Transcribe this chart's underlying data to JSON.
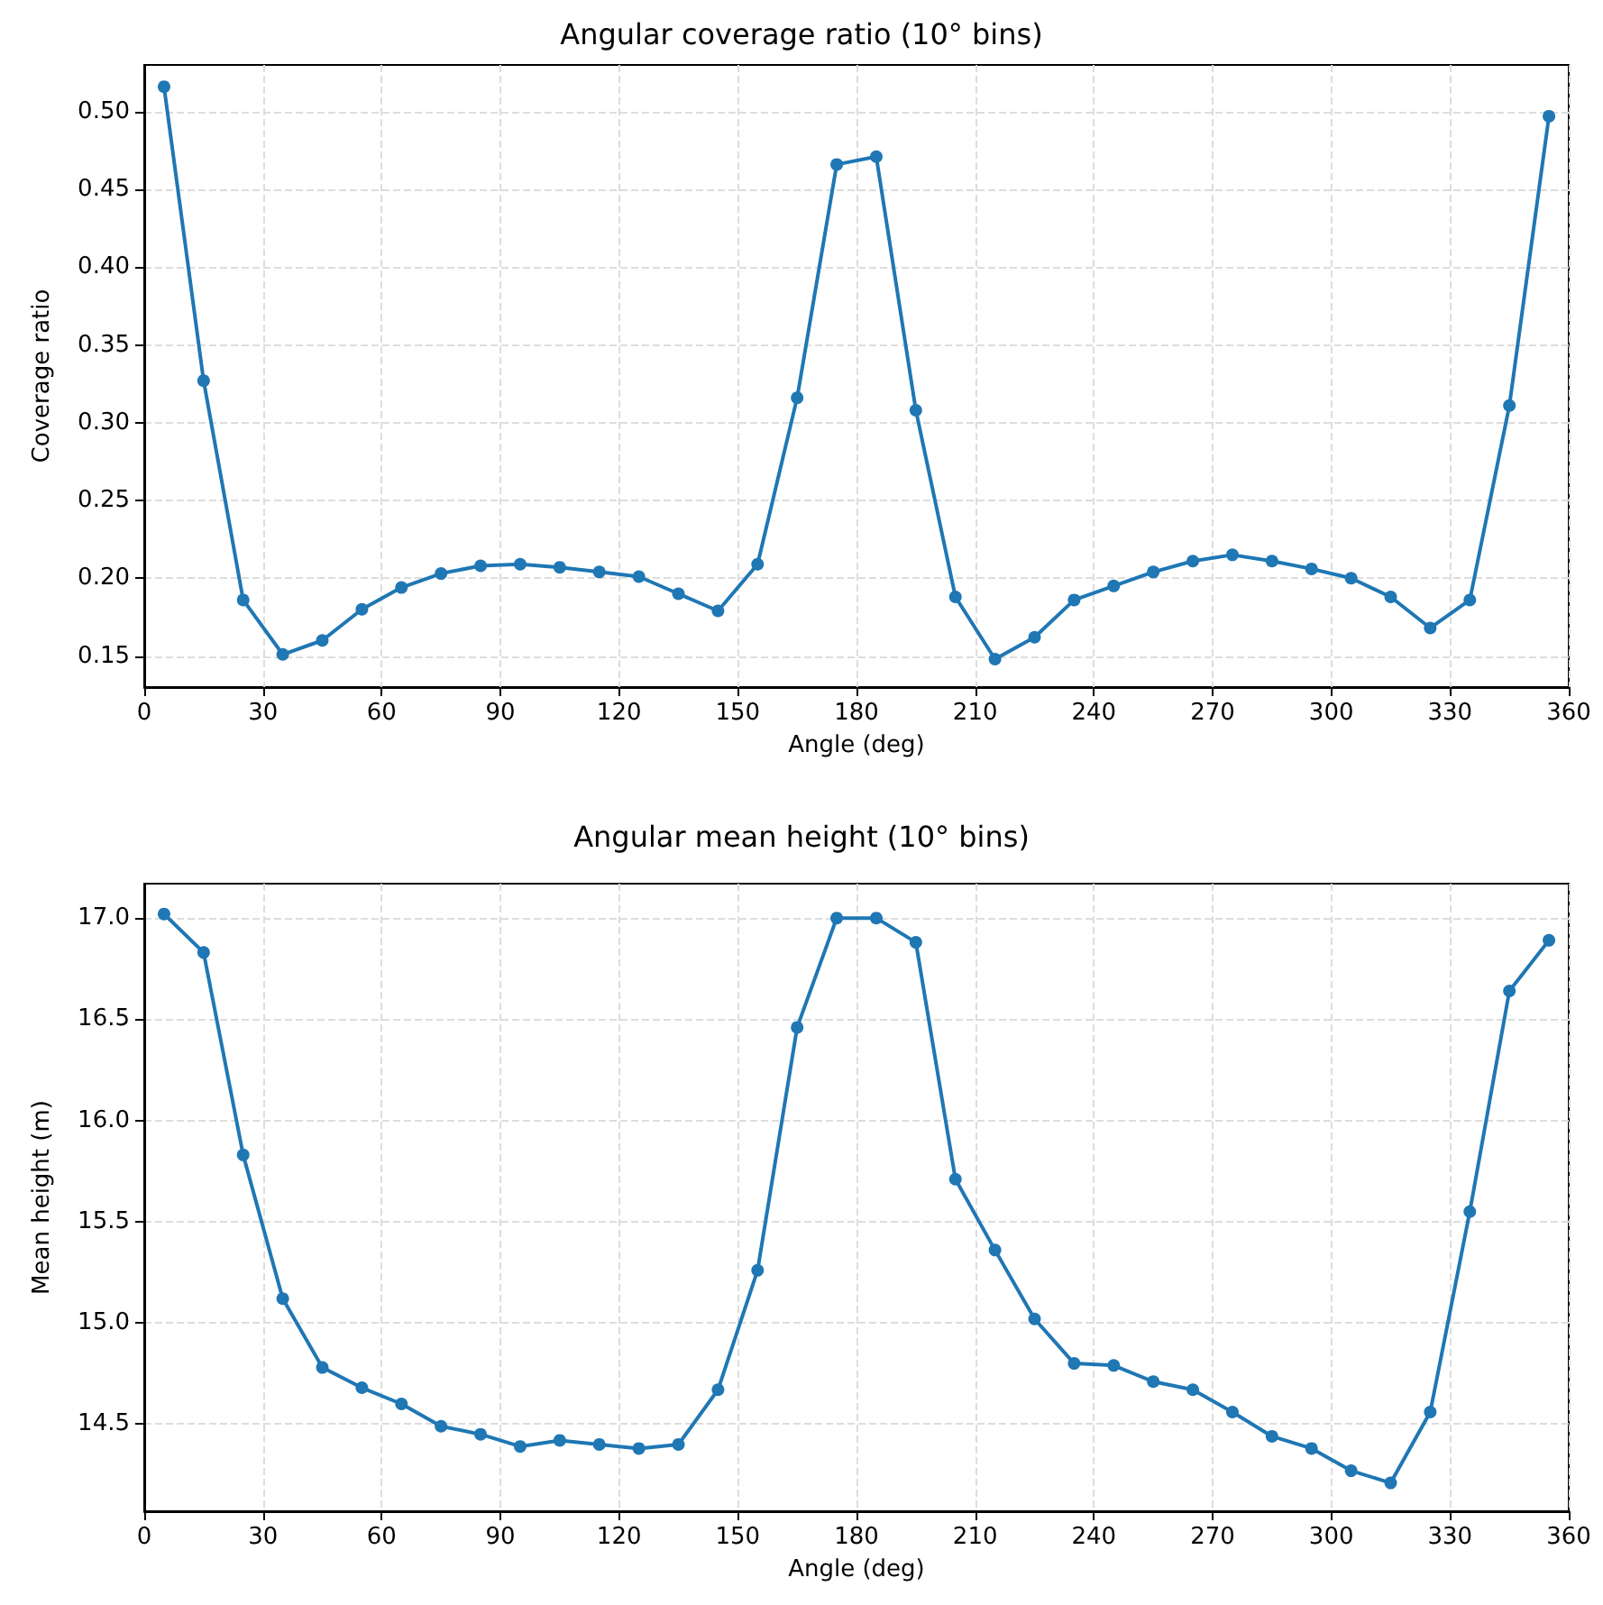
{
  "chart_data": [
    {
      "type": "line",
      "title": "Angular coverage ratio (10° bins)",
      "xlabel": "Angle (deg)",
      "ylabel": "Coverage ratio",
      "x": [
        5,
        15,
        25,
        35,
        45,
        55,
        65,
        75,
        85,
        95,
        105,
        115,
        125,
        135,
        145,
        155,
        165,
        175,
        185,
        195,
        205,
        215,
        225,
        235,
        245,
        255,
        265,
        275,
        285,
        295,
        305,
        315,
        325,
        335,
        345,
        355
      ],
      "series": [
        {
          "color": "#1f77b4",
          "values": [
            0.516,
            0.327,
            0.186,
            0.151,
            0.16,
            0.18,
            0.194,
            0.203,
            0.208,
            0.209,
            0.207,
            0.204,
            0.201,
            0.19,
            0.179,
            0.209,
            0.316,
            0.466,
            0.471,
            0.308,
            0.188,
            0.148,
            0.162,
            0.186,
            0.195,
            0.204,
            0.211,
            0.215,
            0.211,
            0.206,
            0.2,
            0.188,
            0.168,
            0.186,
            0.311,
            0.497
          ]
        }
      ],
      "xlim": [
        0,
        360
      ],
      "xticks": [
        0,
        30,
        60,
        90,
        120,
        150,
        180,
        210,
        240,
        270,
        300,
        330,
        360
      ],
      "ylim": [
        0.13,
        0.53
      ],
      "yticks": [
        {
          "value": 0.15,
          "label": "0.15"
        },
        {
          "value": 0.2,
          "label": "0.20"
        },
        {
          "value": 0.25,
          "label": "0.25"
        },
        {
          "value": 0.3,
          "label": "0.30"
        },
        {
          "value": 0.35,
          "label": "0.35"
        },
        {
          "value": 0.4,
          "label": "0.40"
        },
        {
          "value": 0.45,
          "label": "0.45"
        },
        {
          "value": 0.5,
          "label": "0.50"
        }
      ],
      "grid": true,
      "marker": "circle",
      "line_style": "solid"
    },
    {
      "type": "line",
      "title": "Angular mean height (10° bins)",
      "xlabel": "Angle (deg)",
      "ylabel": "Mean height (m)",
      "x": [
        5,
        15,
        25,
        35,
        45,
        55,
        65,
        75,
        85,
        95,
        105,
        115,
        125,
        135,
        145,
        155,
        165,
        175,
        185,
        195,
        205,
        215,
        225,
        235,
        245,
        255,
        265,
        275,
        285,
        295,
        305,
        315,
        325,
        335,
        345,
        355
      ],
      "series": [
        {
          "color": "#1f77b4",
          "values": [
            17.02,
            16.83,
            15.83,
            15.12,
            14.78,
            14.68,
            14.6,
            14.49,
            14.45,
            14.39,
            14.42,
            14.4,
            14.38,
            14.4,
            14.67,
            15.26,
            16.46,
            17.0,
            17.0,
            16.88,
            15.71,
            15.36,
            15.02,
            14.8,
            14.79,
            14.71,
            14.67,
            14.56,
            14.44,
            14.38,
            14.27,
            14.21,
            14.56,
            15.55,
            16.64,
            16.89
          ]
        }
      ],
      "xlim": [
        0,
        360
      ],
      "xticks": [
        0,
        30,
        60,
        90,
        120,
        150,
        180,
        210,
        240,
        270,
        300,
        330,
        360
      ],
      "ylim": [
        14.07,
        17.17
      ],
      "yticks": [
        {
          "value": 14.5,
          "label": "14.5"
        },
        {
          "value": 15,
          "label": "15.0"
        },
        {
          "value": 15.5,
          "label": "15.5"
        },
        {
          "value": 16,
          "label": "16.0"
        },
        {
          "value": 16.5,
          "label": "16.5"
        },
        {
          "value": 17,
          "label": "17.0"
        }
      ],
      "grid": true,
      "marker": "circle",
      "line_style": "solid"
    }
  ]
}
